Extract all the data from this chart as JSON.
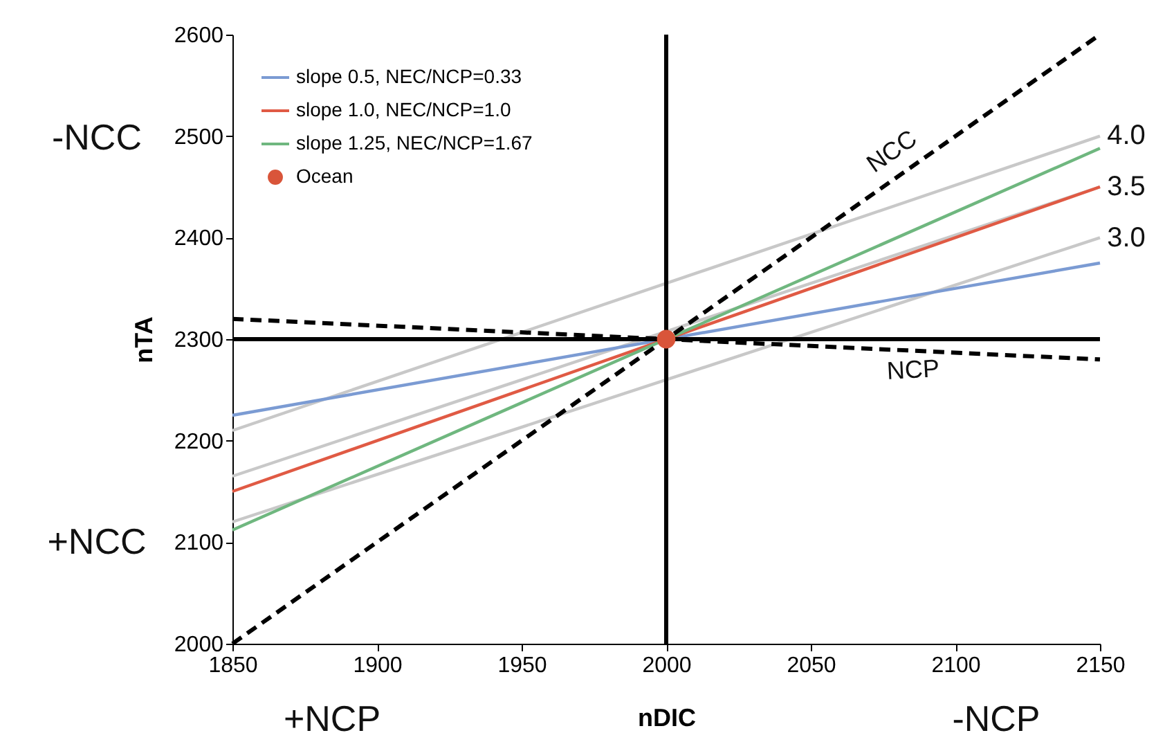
{
  "chart_data": {
    "type": "line",
    "xlabel": "nDIC",
    "ylabel": "nTA",
    "xlim": [
      1850,
      2150
    ],
    "ylim": [
      2000,
      2600
    ],
    "xticks": [
      1850,
      1900,
      1950,
      2000,
      2050,
      2100,
      2150
    ],
    "yticks": [
      2000,
      2100,
      2200,
      2300,
      2400,
      2500,
      2600
    ],
    "grid": false,
    "legend": "top left",
    "marker": "none",
    "series": [
      {
        "color": "#c8c8c8",
        "x": [
          1850,
          2150
        ],
        "values": [
          2210,
          2500
        ],
        "line_style": "solid"
      },
      {
        "color": "#c8c8c8",
        "x": [
          1850,
          2150
        ],
        "values": [
          2165,
          2450
        ],
        "line_style": "solid"
      },
      {
        "color": "#c8c8c8",
        "x": [
          1850,
          2150
        ],
        "values": [
          2120,
          2400
        ],
        "line_style": "solid"
      },
      {
        "name": "slope 0.5, NEC/NCP=0.33",
        "color": "#7b9bd3",
        "x": [
          1850,
          2150
        ],
        "values": [
          2225,
          2375
        ],
        "line_style": "solid"
      },
      {
        "name": "slope 1.0, NEC/NCP=1.0",
        "color": "#e05a44",
        "x": [
          1850,
          2150
        ],
        "values": [
          2150,
          2450
        ],
        "line_style": "solid"
      },
      {
        "name": "slope 1.25, NEC/NCP=1.67",
        "color": "#6fb77f",
        "x": [
          1850,
          2150
        ],
        "values": [
          2112,
          2488
        ],
        "line_style": "solid"
      },
      {
        "color": "#000000",
        "x": [
          1850,
          2150
        ],
        "values": [
          2000,
          2600
        ],
        "line_style": "dashed"
      },
      {
        "color": "#000000",
        "x": [
          1850,
          2150
        ],
        "values": [
          2320,
          2280
        ],
        "line_style": "dashed"
      },
      {
        "type": "scatter",
        "name": "Ocean",
        "color": "#d9553a",
        "x": [
          2000
        ],
        "values": [
          2300
        ],
        "marker": "circle"
      }
    ],
    "ref_lines": [
      {
        "axis": "y",
        "value": 2300,
        "color": "#000000"
      },
      {
        "axis": "x",
        "value": 2000,
        "color": "#000000"
      }
    ],
    "annotations": [
      "-NCC",
      "+NCC",
      "+NCP",
      "-NCP",
      "NCC",
      "NCP",
      "4.0",
      "3.5",
      "3.0"
    ]
  }
}
